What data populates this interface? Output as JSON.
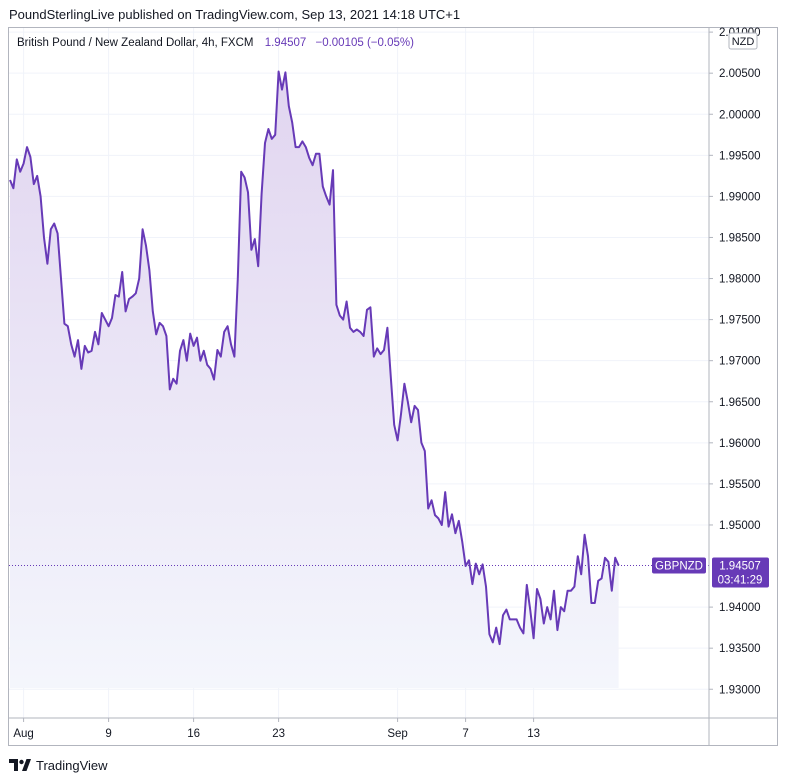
{
  "header": {
    "published_line": "PoundSterlingLive published on TradingView.com, Sep 13, 2021 14:18 UTC+1"
  },
  "legend": {
    "instrument": "British Pound / New Zealand Dollar, 4h, FXCM",
    "last": "1.94507",
    "change": "−0.00105 (−0.05%)"
  },
  "currency_label": "NZD",
  "price_tag": {
    "symbol": "GBPNZD",
    "price": "1.94507",
    "countdown": "03:41:29"
  },
  "footer": {
    "brand": "TradingView"
  },
  "colors": {
    "line": "#673ab7",
    "fill_top": "#e1d5f0",
    "fill_bottom": "#f4f6fc",
    "grid": "#f0f3fa",
    "tag_bg": "#673ab7",
    "legend_values": "#673ab7"
  },
  "chart_data": {
    "type": "area",
    "title": "British Pound / New Zealand Dollar, 4h, FXCM",
    "xlabel": "",
    "ylabel": "",
    "ylim": [
      1.9265,
      2.0105
    ],
    "y_ticks": [
      "2.01000",
      "2.00500",
      "2.00000",
      "1.99500",
      "1.99000",
      "1.98500",
      "1.98000",
      "1.97500",
      "1.97000",
      "1.96500",
      "1.96000",
      "1.95500",
      "1.95000",
      "1.94000",
      "1.93500",
      "1.93000"
    ],
    "x_ticks": [
      "Aug",
      "9",
      "16",
      "23",
      "Sep",
      "7",
      "13"
    ],
    "x_tick_index": [
      4,
      29,
      54,
      79,
      114,
      134,
      154
    ],
    "last_value": 1.94507,
    "grid": true,
    "series": [
      {
        "values": [
          1.992,
          1.991,
          1.9945,
          1.993,
          1.994,
          1.996,
          1.9948,
          1.9915,
          1.9925,
          1.99,
          1.985,
          1.9818,
          1.986,
          1.9867,
          1.9855,
          1.98,
          1.9745,
          1.9742,
          1.972,
          1.9705,
          1.9725,
          1.969,
          1.9718,
          1.971,
          1.9712,
          1.9735,
          1.972,
          1.9758,
          1.975,
          1.9742,
          1.9752,
          1.978,
          1.9778,
          1.9808,
          1.976,
          1.9775,
          1.9778,
          1.9782,
          1.98,
          1.986,
          1.984,
          1.981,
          1.976,
          1.9732,
          1.9746,
          1.9742,
          1.973,
          1.9665,
          1.9678,
          1.9672,
          1.9712,
          1.9725,
          1.97,
          1.9733,
          1.9718,
          1.9728,
          1.97,
          1.9712,
          1.9695,
          1.969,
          1.9677,
          1.9713,
          1.9705,
          1.9735,
          1.9742,
          1.972,
          1.9705,
          1.98,
          1.993,
          1.9923,
          1.9905,
          1.9835,
          1.9848,
          1.9815,
          1.9903,
          1.9965,
          1.9982,
          1.997,
          1.9975,
          2.0052,
          2.003,
          2.0051,
          2.001,
          1.999,
          1.996,
          1.996,
          1.9967,
          1.996,
          1.9947,
          1.9938,
          1.9952,
          1.9952,
          1.9912,
          1.99,
          1.989,
          1.9932,
          1.9768,
          1.9755,
          1.975,
          1.9772,
          1.974,
          1.9735,
          1.9738,
          1.9735,
          1.973,
          1.9762,
          1.9765,
          1.9705,
          1.9715,
          1.9708,
          1.9713,
          1.974,
          1.968,
          1.9622,
          1.9603,
          1.9635,
          1.9672,
          1.965,
          1.9625,
          1.9645,
          1.964,
          1.96,
          1.959,
          1.952,
          1.953,
          1.9512,
          1.9508,
          1.95,
          1.954,
          1.9498,
          1.9513,
          1.949,
          1.9505,
          1.948,
          1.945,
          1.9457,
          1.9428,
          1.9453,
          1.944,
          1.9452,
          1.9425,
          1.9367,
          1.9357,
          1.9375,
          1.9355,
          1.939,
          1.9397,
          1.9385,
          1.9385,
          1.9385,
          1.9375,
          1.9368,
          1.9427,
          1.9397,
          1.9362,
          1.9422,
          1.941,
          1.938,
          1.94,
          1.9385,
          1.942,
          1.9372,
          1.94,
          1.9395,
          1.942,
          1.942,
          1.9425,
          1.9462,
          1.944,
          1.9488,
          1.9462,
          1.9405,
          1.9405,
          1.9432,
          1.9435,
          1.946,
          1.9455,
          1.942,
          1.946,
          1.94507
        ]
      }
    ]
  }
}
